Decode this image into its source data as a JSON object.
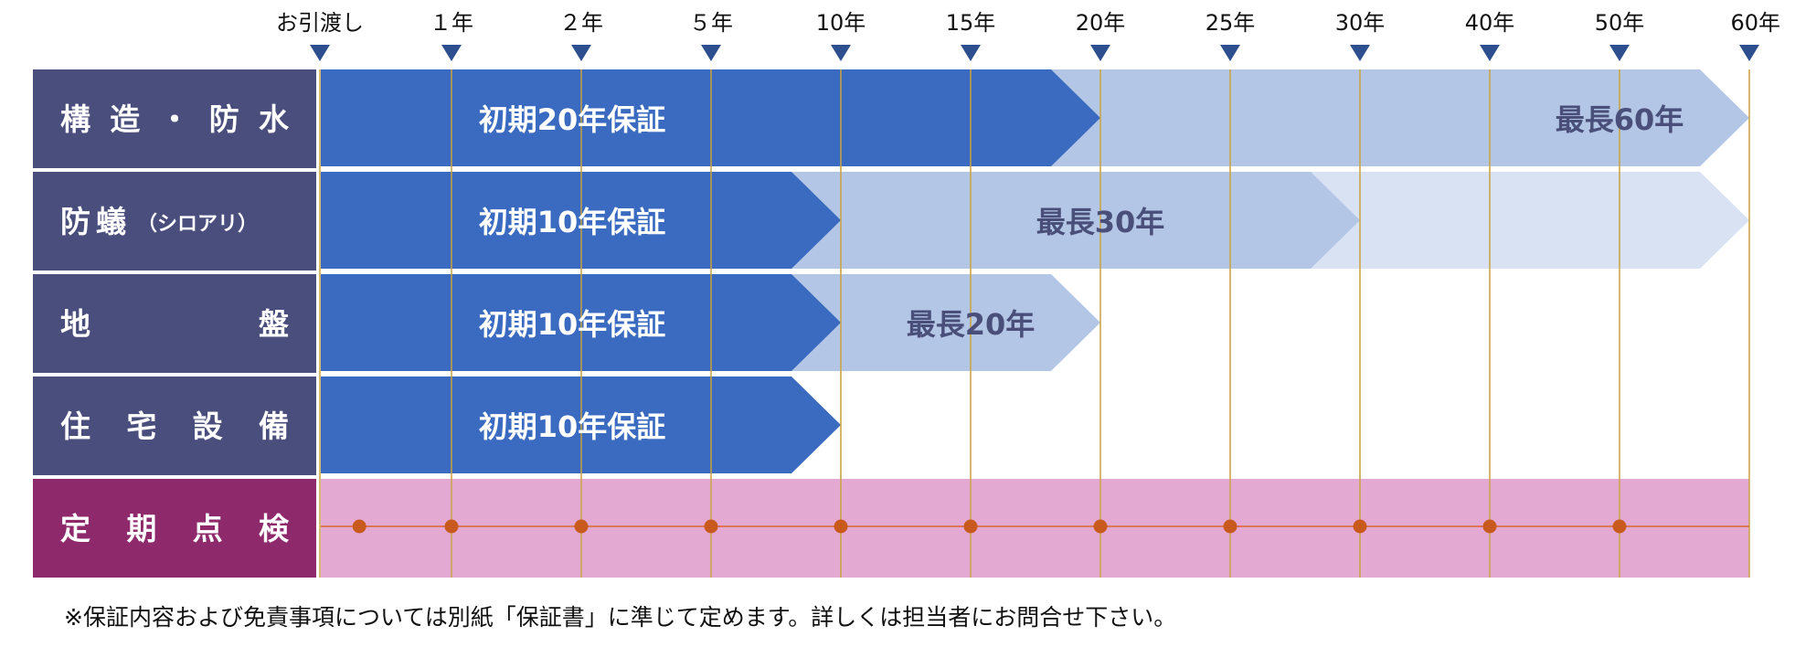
{
  "timeline": {
    "ticks": [
      {
        "label": "お引渡し",
        "year": 0
      },
      {
        "label": "１年",
        "year": 1
      },
      {
        "label": "２年",
        "year": 2
      },
      {
        "label": "５年",
        "year": 5
      },
      {
        "label": "10年",
        "year": 10
      },
      {
        "label": "15年",
        "year": 15
      },
      {
        "label": "20年",
        "year": 20
      },
      {
        "label": "25年",
        "year": 25
      },
      {
        "label": "30年",
        "year": 30
      },
      {
        "label": "40年",
        "year": 40
      },
      {
        "label": "50年",
        "year": 50
      },
      {
        "label": "60年",
        "year": 60
      }
    ]
  },
  "rows": [
    {
      "label": "構造・防水",
      "label_sub": "",
      "initial_years": 20,
      "initial_text": "初期20年保証",
      "max_years": 60,
      "max_text": "最長60年",
      "kind": "guarantee"
    },
    {
      "label": "防蟻",
      "label_sub": "（シロアリ）",
      "initial_years": 10,
      "initial_text": "初期10年保証",
      "max_years": 30,
      "max_text": "最長30年",
      "extra_to": 60,
      "kind": "guarantee"
    },
    {
      "label": "地盤",
      "label_sub": "",
      "initial_years": 10,
      "initial_text": "初期10年保証",
      "max_years": 20,
      "max_text": "最長20年",
      "kind": "guarantee"
    },
    {
      "label": "住宅設備",
      "label_sub": "",
      "initial_years": 10,
      "initial_text": "初期10年保証",
      "kind": "guarantee"
    },
    {
      "label": "定期点検",
      "label_sub": "",
      "kind": "inspection",
      "inspection_points": [
        0.3,
        1,
        2,
        5,
        10,
        15,
        20,
        25,
        30,
        40,
        50
      ]
    }
  ],
  "footnote": "※保証内容および免責事項については別紙「保証書」に準じて定めます。詳しくは担当者にお問合せ下さい。",
  "colors": {
    "label_bg": "#4a4e7d",
    "label_bg_inspection": "#8e2a6c",
    "initial": "#3a6bc0",
    "max": "#b3c6e6",
    "extra": "#d9e2f3",
    "inspection_bg": "#e3a9d3",
    "inspection_line": "#d9652a",
    "inspection_dot": "#c95a1e",
    "gridline": "#c9a23e",
    "tick_marker": "#2d4f8f"
  }
}
